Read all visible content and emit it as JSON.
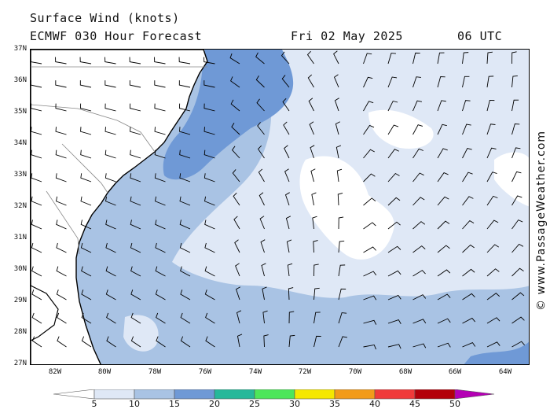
{
  "header": {
    "title_line1": "Surface Wind (knots)",
    "title_line2": "ECMWF 030 Hour Forecast",
    "date": "Fri 02 May 2025",
    "time": "06 UTC"
  },
  "map": {
    "lat_labels": [
      "37N",
      "36N",
      "35N",
      "34N",
      "33N",
      "32N",
      "31N",
      "30N",
      "29N",
      "28N",
      "27N"
    ],
    "lon_labels": [
      "82W",
      "80W",
      "78W",
      "76W",
      "74W",
      "72W",
      "70W",
      "68W",
      "66W",
      "64W"
    ],
    "credit": "© www.PassageWeather.com",
    "colors": {
      "land": "#ffffff",
      "coast": "#000000",
      "lt5": "#ffffff",
      "5_10": "#dfe8f6",
      "10_15": "#a9c3e4",
      "15_20": "#6f99d6"
    }
  },
  "colorbar": {
    "labels": [
      "5",
      "10",
      "15",
      "20",
      "25",
      "30",
      "35",
      "40",
      "45",
      "50"
    ],
    "colors": [
      "#ffffff",
      "#dfe8f6",
      "#a9c3e4",
      "#6f99d6",
      "#26b89a",
      "#4de65a",
      "#f5e800",
      "#f29b1a",
      "#f03a3a",
      "#b3000a",
      "#b400b4"
    ]
  }
}
